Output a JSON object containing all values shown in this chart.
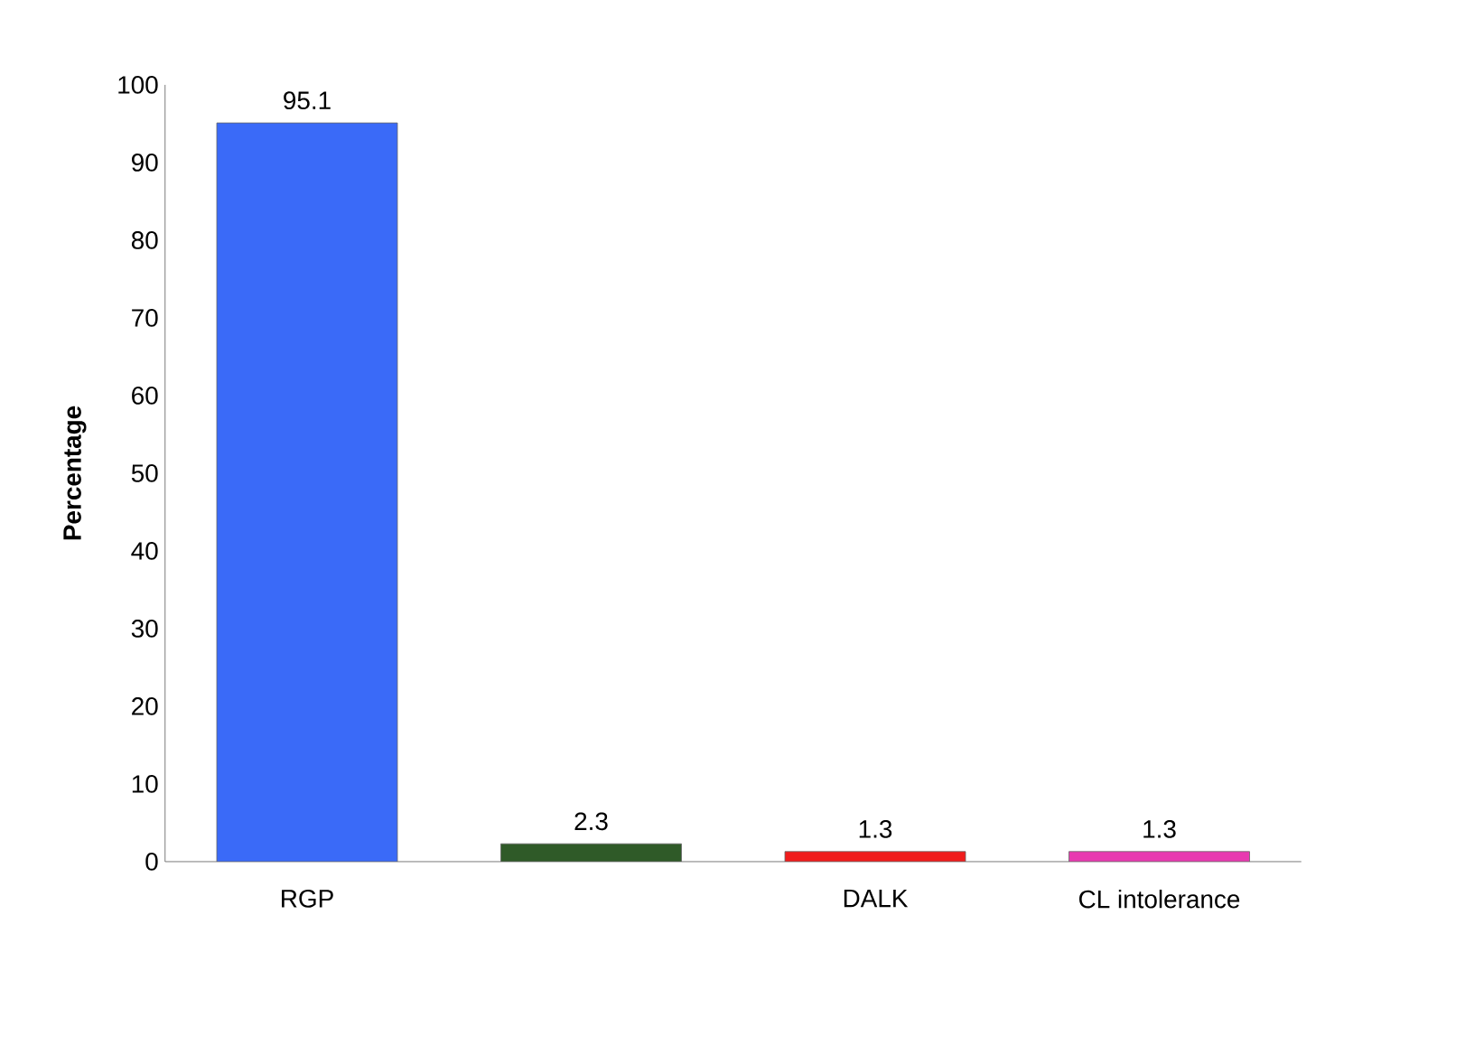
{
  "chart_data": {
    "type": "bar",
    "ylabel": "Percentage",
    "categories": [
      "RGP",
      null,
      "DALK",
      "CL intolerance"
    ],
    "values": [
      95.1,
      2.3,
      1.3,
      1.3
    ],
    "colors": [
      "#3a6af8",
      "#2f5a28",
      "#f01c1c",
      "#e83ab0"
    ],
    "ylim": [
      0,
      100
    ],
    "yticks": [
      0,
      10,
      20,
      30,
      40,
      50,
      60,
      70,
      80,
      90,
      100
    ],
    "data_labels": true,
    "grid": false
  }
}
